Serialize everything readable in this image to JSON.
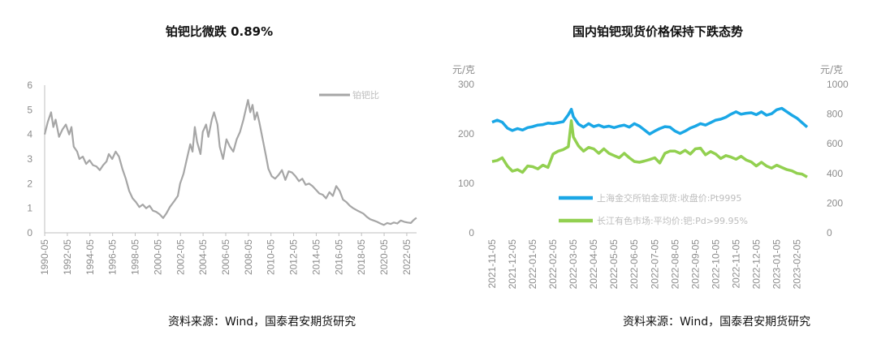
{
  "chart_data": [
    {
      "type": "line",
      "title": "铂钯比微跌 0.89%",
      "source": "资料来源：Wind，国泰君安期货研究",
      "ylim": [
        0,
        6
      ],
      "y_ticks": [
        "0",
        "1",
        "2",
        "3",
        "4",
        "5",
        "6"
      ],
      "x_ticks": [
        "1990-05",
        "1992-05",
        "1994-05",
        "1996-05",
        "1998-05",
        "2000-05",
        "2002-05",
        "2004-05",
        "2006-05",
        "2008-05",
        "2010-05",
        "2012-05",
        "2014-05",
        "2016-05",
        "2018-05",
        "2020-05",
        "2022-05"
      ],
      "x_range": [
        1990.33,
        2023.2
      ],
      "legend": "铂钯比",
      "legend_position": "top-right",
      "grid": false,
      "series": [
        {
          "name": "铂钯比",
          "color": "#a6a6a6",
          "points": [
            [
              1990.33,
              4.0
            ],
            [
              1990.6,
              4.5
            ],
            [
              1990.9,
              4.9
            ],
            [
              1991.1,
              4.3
            ],
            [
              1991.3,
              4.6
            ],
            [
              1991.6,
              3.9
            ],
            [
              1991.9,
              4.2
            ],
            [
              1992.2,
              4.4
            ],
            [
              1992.5,
              4.0
            ],
            [
              1992.7,
              4.3
            ],
            [
              1992.9,
              3.5
            ],
            [
              1993.2,
              3.3
            ],
            [
              1993.4,
              3.0
            ],
            [
              1993.7,
              3.1
            ],
            [
              1994.0,
              2.8
            ],
            [
              1994.3,
              2.95
            ],
            [
              1994.6,
              2.75
            ],
            [
              1994.9,
              2.7
            ],
            [
              1995.2,
              2.55
            ],
            [
              1995.5,
              2.75
            ],
            [
              1995.8,
              2.9
            ],
            [
              1996.0,
              3.2
            ],
            [
              1996.3,
              3.0
            ],
            [
              1996.6,
              3.3
            ],
            [
              1996.9,
              3.1
            ],
            [
              1997.2,
              2.6
            ],
            [
              1997.5,
              2.2
            ],
            [
              1997.8,
              1.7
            ],
            [
              1998.1,
              1.4
            ],
            [
              1998.4,
              1.25
            ],
            [
              1998.7,
              1.05
            ],
            [
              1999.0,
              1.15
            ],
            [
              1999.3,
              1.0
            ],
            [
              1999.6,
              1.1
            ],
            [
              1999.9,
              0.9
            ],
            [
              2000.2,
              0.85
            ],
            [
              2000.5,
              0.75
            ],
            [
              2000.8,
              0.6
            ],
            [
              2001.1,
              0.8
            ],
            [
              2001.4,
              1.05
            ],
            [
              2001.8,
              1.3
            ],
            [
              2002.1,
              1.5
            ],
            [
              2002.3,
              2.0
            ],
            [
              2002.6,
              2.4
            ],
            [
              2002.9,
              3.0
            ],
            [
              2003.2,
              3.6
            ],
            [
              2003.4,
              3.3
            ],
            [
              2003.6,
              4.3
            ],
            [
              2003.8,
              3.7
            ],
            [
              2004.1,
              3.2
            ],
            [
              2004.3,
              4.1
            ],
            [
              2004.6,
              4.4
            ],
            [
              2004.8,
              3.9
            ],
            [
              2005.1,
              4.6
            ],
            [
              2005.3,
              4.9
            ],
            [
              2005.6,
              4.4
            ],
            [
              2005.8,
              3.5
            ],
            [
              2006.1,
              3.0
            ],
            [
              2006.4,
              3.8
            ],
            [
              2006.7,
              3.5
            ],
            [
              2007.0,
              3.3
            ],
            [
              2007.3,
              3.8
            ],
            [
              2007.6,
              4.1
            ],
            [
              2007.9,
              4.6
            ],
            [
              2008.1,
              5.0
            ],
            [
              2008.3,
              5.4
            ],
            [
              2008.5,
              4.9
            ],
            [
              2008.7,
              5.2
            ],
            [
              2008.9,
              4.6
            ],
            [
              2009.1,
              4.9
            ],
            [
              2009.3,
              4.5
            ],
            [
              2009.6,
              3.8
            ],
            [
              2009.9,
              3.1
            ],
            [
              2010.1,
              2.6
            ],
            [
              2010.4,
              2.3
            ],
            [
              2010.7,
              2.2
            ],
            [
              2011.0,
              2.35
            ],
            [
              2011.3,
              2.55
            ],
            [
              2011.6,
              2.15
            ],
            [
              2011.9,
              2.5
            ],
            [
              2012.2,
              2.45
            ],
            [
              2012.5,
              2.3
            ],
            [
              2012.8,
              2.1
            ],
            [
              2013.1,
              2.2
            ],
            [
              2013.4,
              1.95
            ],
            [
              2013.7,
              2.0
            ],
            [
              2014.0,
              1.9
            ],
            [
              2014.3,
              1.75
            ],
            [
              2014.6,
              1.6
            ],
            [
              2014.9,
              1.55
            ],
            [
              2015.2,
              1.4
            ],
            [
              2015.5,
              1.65
            ],
            [
              2015.8,
              1.5
            ],
            [
              2016.1,
              1.9
            ],
            [
              2016.4,
              1.7
            ],
            [
              2016.7,
              1.35
            ],
            [
              2017.0,
              1.25
            ],
            [
              2017.3,
              1.1
            ],
            [
              2017.6,
              1.0
            ],
            [
              2017.9,
              0.92
            ],
            [
              2018.2,
              0.85
            ],
            [
              2018.5,
              0.78
            ],
            [
              2018.8,
              0.65
            ],
            [
              2019.1,
              0.55
            ],
            [
              2019.4,
              0.5
            ],
            [
              2019.7,
              0.45
            ],
            [
              2020.0,
              0.38
            ],
            [
              2020.3,
              0.32
            ],
            [
              2020.6,
              0.4
            ],
            [
              2020.9,
              0.36
            ],
            [
              2021.2,
              0.42
            ],
            [
              2021.5,
              0.38
            ],
            [
              2021.8,
              0.5
            ],
            [
              2022.1,
              0.45
            ],
            [
              2022.4,
              0.42
            ],
            [
              2022.7,
              0.4
            ],
            [
              2022.9,
              0.5
            ],
            [
              2023.1,
              0.58
            ],
            [
              2023.2,
              0.6
            ]
          ]
        }
      ]
    },
    {
      "type": "line",
      "title": "国内铂钯现货价格保持下跌态势",
      "source": "资料来源：Wind，国泰君安期货研究",
      "y_left_unit": "元/克",
      "y_right_unit": "元/克",
      "ylim_left": [
        0,
        300
      ],
      "ylim_right": [
        0,
        1000
      ],
      "y_left_ticks": [
        "0",
        "100",
        "200",
        "300"
      ],
      "y_right_ticks": [
        "0",
        "200",
        "400",
        "600",
        "800",
        "1000"
      ],
      "x_ticks": [
        "2021-11-05",
        "2021-12-05",
        "2022-01-05",
        "2022-02-05",
        "2022-03-05",
        "2022-04-05",
        "2022-05-05",
        "2022-06-05",
        "2022-07-05",
        "2022-08-05",
        "2022-09-05",
        "2022-10-05",
        "2022-11-05",
        "2022-12-05",
        "2023-01-05",
        "2023-02-05"
      ],
      "x_range": [
        0,
        15.5
      ],
      "legend_position": "center-right",
      "grid": false,
      "series": [
        {
          "name": "上海金交所铂金现货:收盘价:Pt9995",
          "axis": "left",
          "color": "#1aa7e6",
          "points": [
            [
              0.0,
              222
            ],
            [
              0.25,
              226
            ],
            [
              0.5,
              222
            ],
            [
              0.75,
              210
            ],
            [
              1.0,
              205
            ],
            [
              1.25,
              209
            ],
            [
              1.5,
              206
            ],
            [
              1.75,
              211
            ],
            [
              2.0,
              213
            ],
            [
              2.25,
              216
            ],
            [
              2.5,
              217
            ],
            [
              2.75,
              220
            ],
            [
              3.0,
              219
            ],
            [
              3.25,
              221
            ],
            [
              3.5,
              223
            ],
            [
              3.75,
              237
            ],
            [
              3.9,
              248
            ],
            [
              4.0,
              233
            ],
            [
              4.25,
              218
            ],
            [
              4.5,
              212
            ],
            [
              4.75,
              219
            ],
            [
              5.0,
              213
            ],
            [
              5.25,
              216
            ],
            [
              5.5,
              212
            ],
            [
              5.75,
              214
            ],
            [
              6.0,
              211
            ],
            [
              6.25,
              214
            ],
            [
              6.5,
              216
            ],
            [
              6.75,
              212
            ],
            [
              7.0,
              219
            ],
            [
              7.25,
              214
            ],
            [
              7.5,
              206
            ],
            [
              7.75,
              198
            ],
            [
              8.0,
              204
            ],
            [
              8.25,
              209
            ],
            [
              8.5,
              213
            ],
            [
              8.75,
              212
            ],
            [
              9.0,
              204
            ],
            [
              9.25,
              199
            ],
            [
              9.5,
              204
            ],
            [
              9.75,
              210
            ],
            [
              10.0,
              214
            ],
            [
              10.25,
              219
            ],
            [
              10.5,
              216
            ],
            [
              10.75,
              221
            ],
            [
              11.0,
              226
            ],
            [
              11.25,
              228
            ],
            [
              11.5,
              232
            ],
            [
              11.75,
              238
            ],
            [
              12.0,
              243
            ],
            [
              12.25,
              238
            ],
            [
              12.5,
              240
            ],
            [
              12.75,
              241
            ],
            [
              13.0,
              237
            ],
            [
              13.25,
              243
            ],
            [
              13.5,
              236
            ],
            [
              13.75,
              239
            ],
            [
              14.0,
              247
            ],
            [
              14.25,
              250
            ],
            [
              14.5,
              243
            ],
            [
              14.75,
              236
            ],
            [
              15.0,
              230
            ],
            [
              15.25,
              221
            ],
            [
              15.5,
              212
            ]
          ]
        },
        {
          "name": "长江有色市场:平均价:钯:Pd>99.95%",
          "axis": "right",
          "color": "#92d050",
          "points": [
            [
              0.0,
              475
            ],
            [
              0.25,
              482
            ],
            [
              0.5,
              500
            ],
            [
              0.75,
              445
            ],
            [
              1.0,
              410
            ],
            [
              1.25,
              420
            ],
            [
              1.5,
              402
            ],
            [
              1.75,
              445
            ],
            [
              2.0,
              440
            ],
            [
              2.25,
              425
            ],
            [
              2.5,
              450
            ],
            [
              2.75,
              435
            ],
            [
              3.0,
              525
            ],
            [
              3.25,
              545
            ],
            [
              3.5,
              555
            ],
            [
              3.75,
              575
            ],
            [
              3.9,
              750
            ],
            [
              4.0,
              640
            ],
            [
              4.25,
              580
            ],
            [
              4.5,
              545
            ],
            [
              4.75,
              570
            ],
            [
              5.0,
              560
            ],
            [
              5.25,
              530
            ],
            [
              5.5,
              560
            ],
            [
              5.75,
              530
            ],
            [
              6.0,
              515
            ],
            [
              6.25,
              500
            ],
            [
              6.5,
              530
            ],
            [
              6.75,
              500
            ],
            [
              7.0,
              475
            ],
            [
              7.25,
              470
            ],
            [
              7.5,
              478
            ],
            [
              7.75,
              488
            ],
            [
              8.0,
              500
            ],
            [
              8.25,
              465
            ],
            [
              8.5,
              530
            ],
            [
              8.75,
              545
            ],
            [
              9.0,
              545
            ],
            [
              9.25,
              530
            ],
            [
              9.5,
              550
            ],
            [
              9.75,
              525
            ],
            [
              10.0,
              560
            ],
            [
              10.25,
              565
            ],
            [
              10.5,
              520
            ],
            [
              10.75,
              542
            ],
            [
              11.0,
              525
            ],
            [
              11.25,
              495
            ],
            [
              11.5,
              515
            ],
            [
              11.75,
              505
            ],
            [
              12.0,
              490
            ],
            [
              12.25,
              510
            ],
            [
              12.5,
              485
            ],
            [
              12.75,
              472
            ],
            [
              13.0,
              445
            ],
            [
              13.25,
              470
            ],
            [
              13.5,
              445
            ],
            [
              13.75,
              430
            ],
            [
              14.0,
              450
            ],
            [
              14.25,
              435
            ],
            [
              14.5,
              420
            ],
            [
              14.75,
              412
            ],
            [
              15.0,
              395
            ],
            [
              15.25,
              390
            ],
            [
              15.5,
              370
            ]
          ]
        }
      ]
    }
  ]
}
